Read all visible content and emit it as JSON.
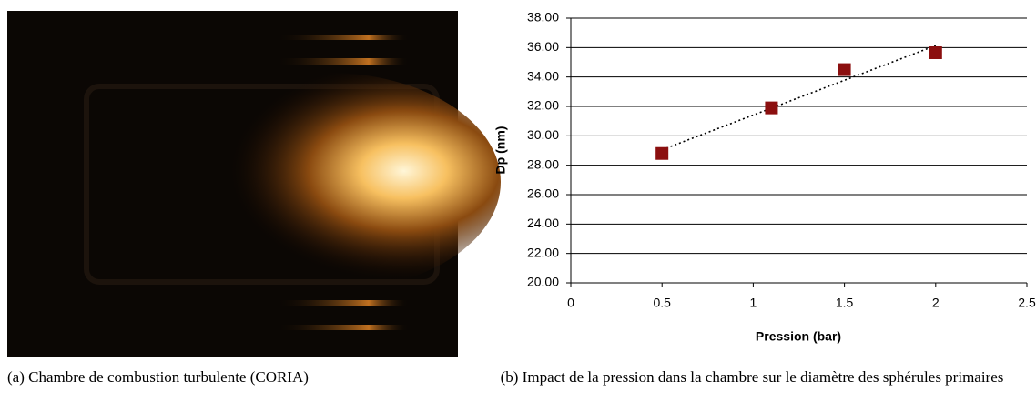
{
  "chart_data": {
    "type": "scatter",
    "x_label": "Pression (bar)",
    "y_label": "Dp (nm)",
    "x": [
      0.5,
      1.1,
      1.5,
      2.0
    ],
    "values": [
      28.8,
      31.9,
      34.5,
      35.65
    ],
    "color": "#8b0f0f",
    "trendline": "linear",
    "xlim": [
      0,
      2.5
    ],
    "xticks": [
      0,
      0.5,
      1,
      1.5,
      2,
      2.5
    ],
    "ylim": [
      20,
      38
    ],
    "yticks": [
      {
        "value": 20,
        "label": "20.00"
      },
      {
        "value": 22,
        "label": "22.00"
      },
      {
        "value": 24,
        "label": "24.00"
      },
      {
        "value": 26,
        "label": "26.00"
      },
      {
        "value": 28,
        "label": "28.00"
      },
      {
        "value": 30,
        "label": "30.00"
      },
      {
        "value": 32,
        "label": "32.00"
      },
      {
        "value": 34,
        "label": "34.00"
      },
      {
        "value": 36,
        "label": "36.00"
      },
      {
        "value": 38,
        "label": "38.00"
      }
    ],
    "grid": true
  },
  "captions": [
    "(a) Chambre de combustion turbulente (CORIA)",
    "(b) Impact de la pression dans la chambre sur le diamètre des sphérules primaires"
  ]
}
